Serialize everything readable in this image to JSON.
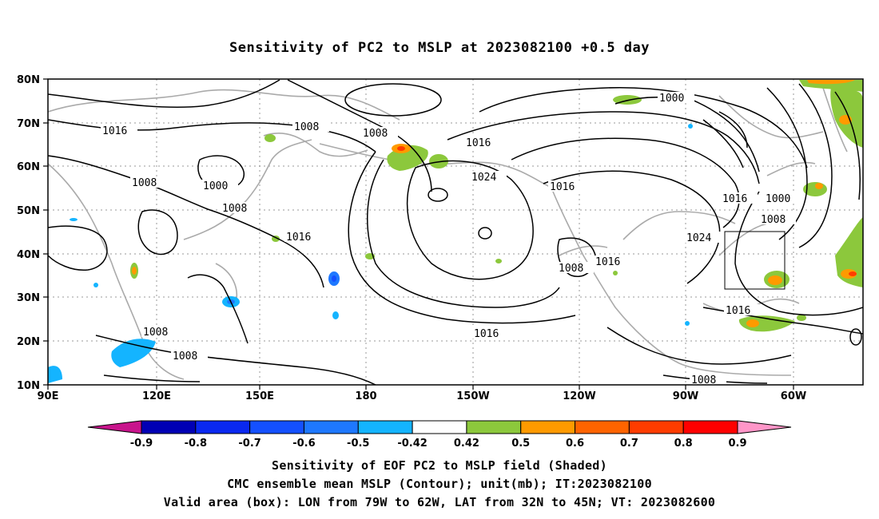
{
  "title": "Sensitivity of PC2 to MSLP at 2023082100 +0.5 day",
  "lat_labels": [
    "80N",
    "70N",
    "60N",
    "50N",
    "40N",
    "30N",
    "20N",
    "10N"
  ],
  "lon_labels": [
    "90E",
    "120E",
    "150E",
    "180",
    "150W",
    "120W",
    "90W",
    "60W"
  ],
  "contour_labels": [
    "1016",
    "1008",
    "1008",
    "1016",
    "1000",
    "1024",
    "1016",
    "1008",
    "1016",
    "1000",
    "1016",
    "1008",
    "1024",
    "1016",
    "1008",
    "1016",
    "1016",
    "1008",
    "1008",
    "1008"
  ],
  "colorbar": {
    "labels": [
      "-0.9",
      "-0.8",
      "-0.7",
      "-0.6",
      "-0.5",
      "-0.42",
      "0.42",
      "0.5",
      "0.6",
      "0.7",
      "0.8",
      "0.9"
    ],
    "colors": [
      "#0000b4",
      "#0a28f0",
      "#1450ff",
      "#1e78ff",
      "#14b4ff",
      "#ffffff",
      "#8cc83c",
      "#ff9a00",
      "#ff6400",
      "#ff3c00",
      "#ff0000"
    ],
    "left_end_color": "#c8148c",
    "right_end_color": "#ff96c8"
  },
  "valid_box": {
    "lon_from": "79W",
    "lon_to": "62W",
    "lat_from": "32N",
    "lat_to": "45N"
  },
  "notes": {
    "line1": "Sensitivity of EOF PC2 to MSLP field (Shaded)",
    "line2": "CMC ensemble mean MSLP (Contour); unit(mb); IT:2023082100",
    "line3": "Valid area (box): LON from 79W to 62W, LAT from 32N to 45N; VT: 2023082600"
  }
}
